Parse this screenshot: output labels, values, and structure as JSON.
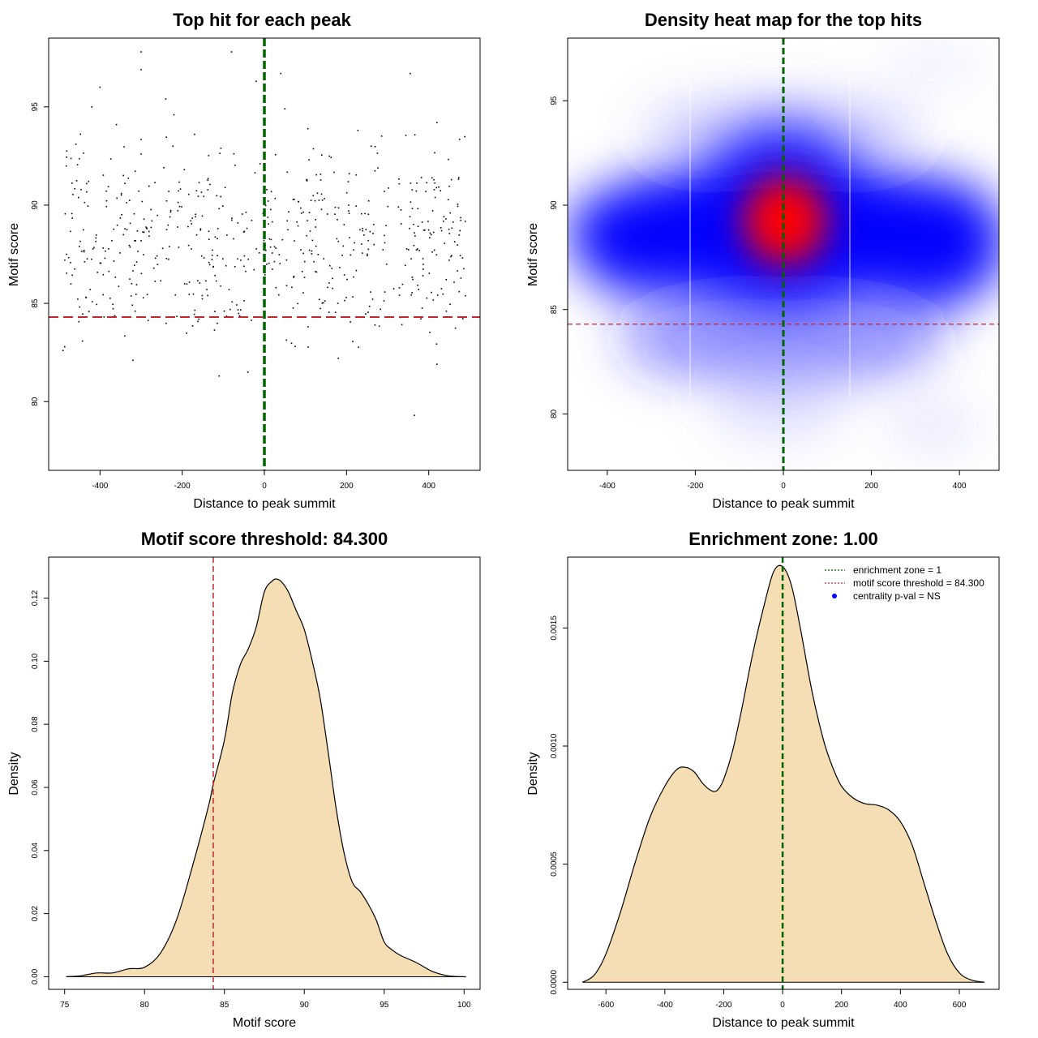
{
  "colors": {
    "green": "#006400",
    "red": "#c0282d",
    "fill": "#f5deb3",
    "point": "#000000",
    "heat_low": "#ffffff",
    "heat_mid": "#0000ff",
    "heat_high": "#ff0000"
  },
  "chart_data": [
    {
      "type": "scatter",
      "title": "Top hit for each peak",
      "xlabel": "Distance to peak summit",
      "ylabel": "Motif score",
      "xlim": [
        -525,
        525
      ],
      "ylim": [
        76.5,
        98.5
      ],
      "xticks": [
        -400,
        -200,
        0,
        200,
        400
      ],
      "yticks": [
        80,
        85,
        90,
        95
      ],
      "vline": 0,
      "hline": 84.3,
      "grid": false,
      "n_points": 600,
      "points_sample": [
        [
          -300,
          97.8
        ],
        [
          -80,
          97.8
        ],
        [
          355,
          96.7
        ],
        [
          40,
          96.7
        ],
        [
          -400,
          96.0
        ],
        [
          -20,
          96.3
        ],
        [
          -420,
          95.0
        ],
        [
          -300,
          92.6
        ],
        [
          420,
          94.2
        ],
        [
          -360,
          94.1
        ],
        [
          -300,
          96.9
        ],
        [
          -240,
          95.4
        ],
        [
          -220,
          94.6
        ],
        [
          50,
          94.9
        ],
        [
          -170,
          93.6
        ],
        [
          260,
          93.0
        ],
        [
          420,
          81.9
        ],
        [
          -110,
          81.3
        ],
        [
          -40,
          81.5
        ],
        [
          180,
          82.2
        ],
        [
          -490,
          82.6
        ],
        [
          -320,
          82.1
        ],
        [
          365,
          79.3
        ],
        [
          0,
          79.8
        ]
      ]
    },
    {
      "type": "heatmap",
      "title": "Density heat map for the top hits",
      "xlabel": "Distance to peak summit",
      "ylabel": "Motif score",
      "xlim": [
        -490,
        490
      ],
      "ylim": [
        77.3,
        98.0
      ],
      "xticks": [
        -400,
        -200,
        0,
        200,
        400
      ],
      "yticks": [
        80,
        85,
        90,
        95
      ],
      "vline": 0,
      "hline": 84.3,
      "peak": {
        "x": 0,
        "y": 89.2
      },
      "colorscale": [
        "white",
        "blue",
        "red"
      ]
    },
    {
      "type": "area",
      "title": "Motif score threshold: 84.300",
      "xlabel": "Motif score",
      "ylabel": "Density",
      "xlim": [
        74.0,
        101.0
      ],
      "ylim": [
        -0.004,
        0.133
      ],
      "xticks": [
        75,
        80,
        85,
        90,
        95,
        100
      ],
      "yticks": [
        0.0,
        0.02,
        0.04,
        0.06,
        0.08,
        0.1,
        0.12
      ],
      "ytick_labels": [
        "0.00",
        "0.02",
        "0.04",
        "0.06",
        "0.08",
        "0.10",
        "0.12"
      ],
      "vline": 84.3,
      "x": [
        75.1,
        76,
        77,
        78,
        79,
        80,
        81,
        82,
        83,
        84,
        84.3,
        85,
        85.5,
        86,
        86.5,
        87,
        87.5,
        88,
        88.3,
        88.6,
        89,
        89.5,
        90,
        90.5,
        91,
        91.5,
        92,
        92.5,
        93,
        93.5,
        94,
        94.5,
        95,
        95.5,
        96,
        97,
        98,
        99,
        100,
        100.1
      ],
      "y": [
        0,
        0.0003,
        0.0012,
        0.0012,
        0.0025,
        0.003,
        0.0075,
        0.018,
        0.035,
        0.054,
        0.061,
        0.075,
        0.09,
        0.099,
        0.104,
        0.111,
        0.122,
        0.1255,
        0.126,
        0.125,
        0.122,
        0.116,
        0.11,
        0.1,
        0.088,
        0.071,
        0.053,
        0.039,
        0.03,
        0.027,
        0.023,
        0.018,
        0.011,
        0.0085,
        0.0068,
        0.0045,
        0.0017,
        0.0003,
        0,
        0
      ]
    },
    {
      "type": "area",
      "title": "Enrichment zone: 1.00",
      "xlabel": "Distance to peak summit",
      "ylabel": "Density",
      "xlim": [
        -730,
        735
      ],
      "ylim": [
        -3e-05,
        0.0018
      ],
      "xticks": [
        -600,
        -400,
        -200,
        0,
        200,
        400,
        600
      ],
      "yticks": [
        0.0,
        0.0005,
        0.001,
        0.0015
      ],
      "ytick_labels": [
        "0.0000",
        "0.0005",
        "0.0010",
        "0.0015"
      ],
      "vline": 0,
      "x": [
        -680,
        -640,
        -600,
        -550,
        -500,
        -450,
        -400,
        -360,
        -330,
        -300,
        -270,
        -240,
        -220,
        -200,
        -170,
        -140,
        -100,
        -60,
        -30,
        0,
        30,
        60,
        100,
        140,
        170,
        200,
        240,
        280,
        320,
        360,
        400,
        440,
        480,
        520,
        560,
        600,
        640,
        685
      ],
      "y": [
        0,
        3e-05,
        0.00012,
        0.0003,
        0.00051,
        0.0007,
        0.00083,
        0.0009,
        0.00091,
        0.00089,
        0.00084,
        0.00081,
        0.000815,
        0.00086,
        0.00098,
        0.00115,
        0.0014,
        0.00161,
        0.00174,
        0.00176,
        0.00168,
        0.0015,
        0.00123,
        0.00102,
        0.00091,
        0.00083,
        0.00078,
        0.000756,
        0.00075,
        0.00073,
        0.00068,
        0.00058,
        0.00042,
        0.00026,
        0.00012,
        4e-05,
        1e-05,
        0
      ]
    }
  ],
  "legend": {
    "position": "top-right",
    "items": [
      {
        "label": "enrichment zone = 1",
        "symbol": "dotted-line",
        "color": "#006400"
      },
      {
        "label": "motif score threshold = 84.300",
        "symbol": "dotted-line",
        "color": "#c0282d"
      },
      {
        "label": "centrality p-val = NS",
        "symbol": "point",
        "color": "#0000ff"
      }
    ]
  }
}
